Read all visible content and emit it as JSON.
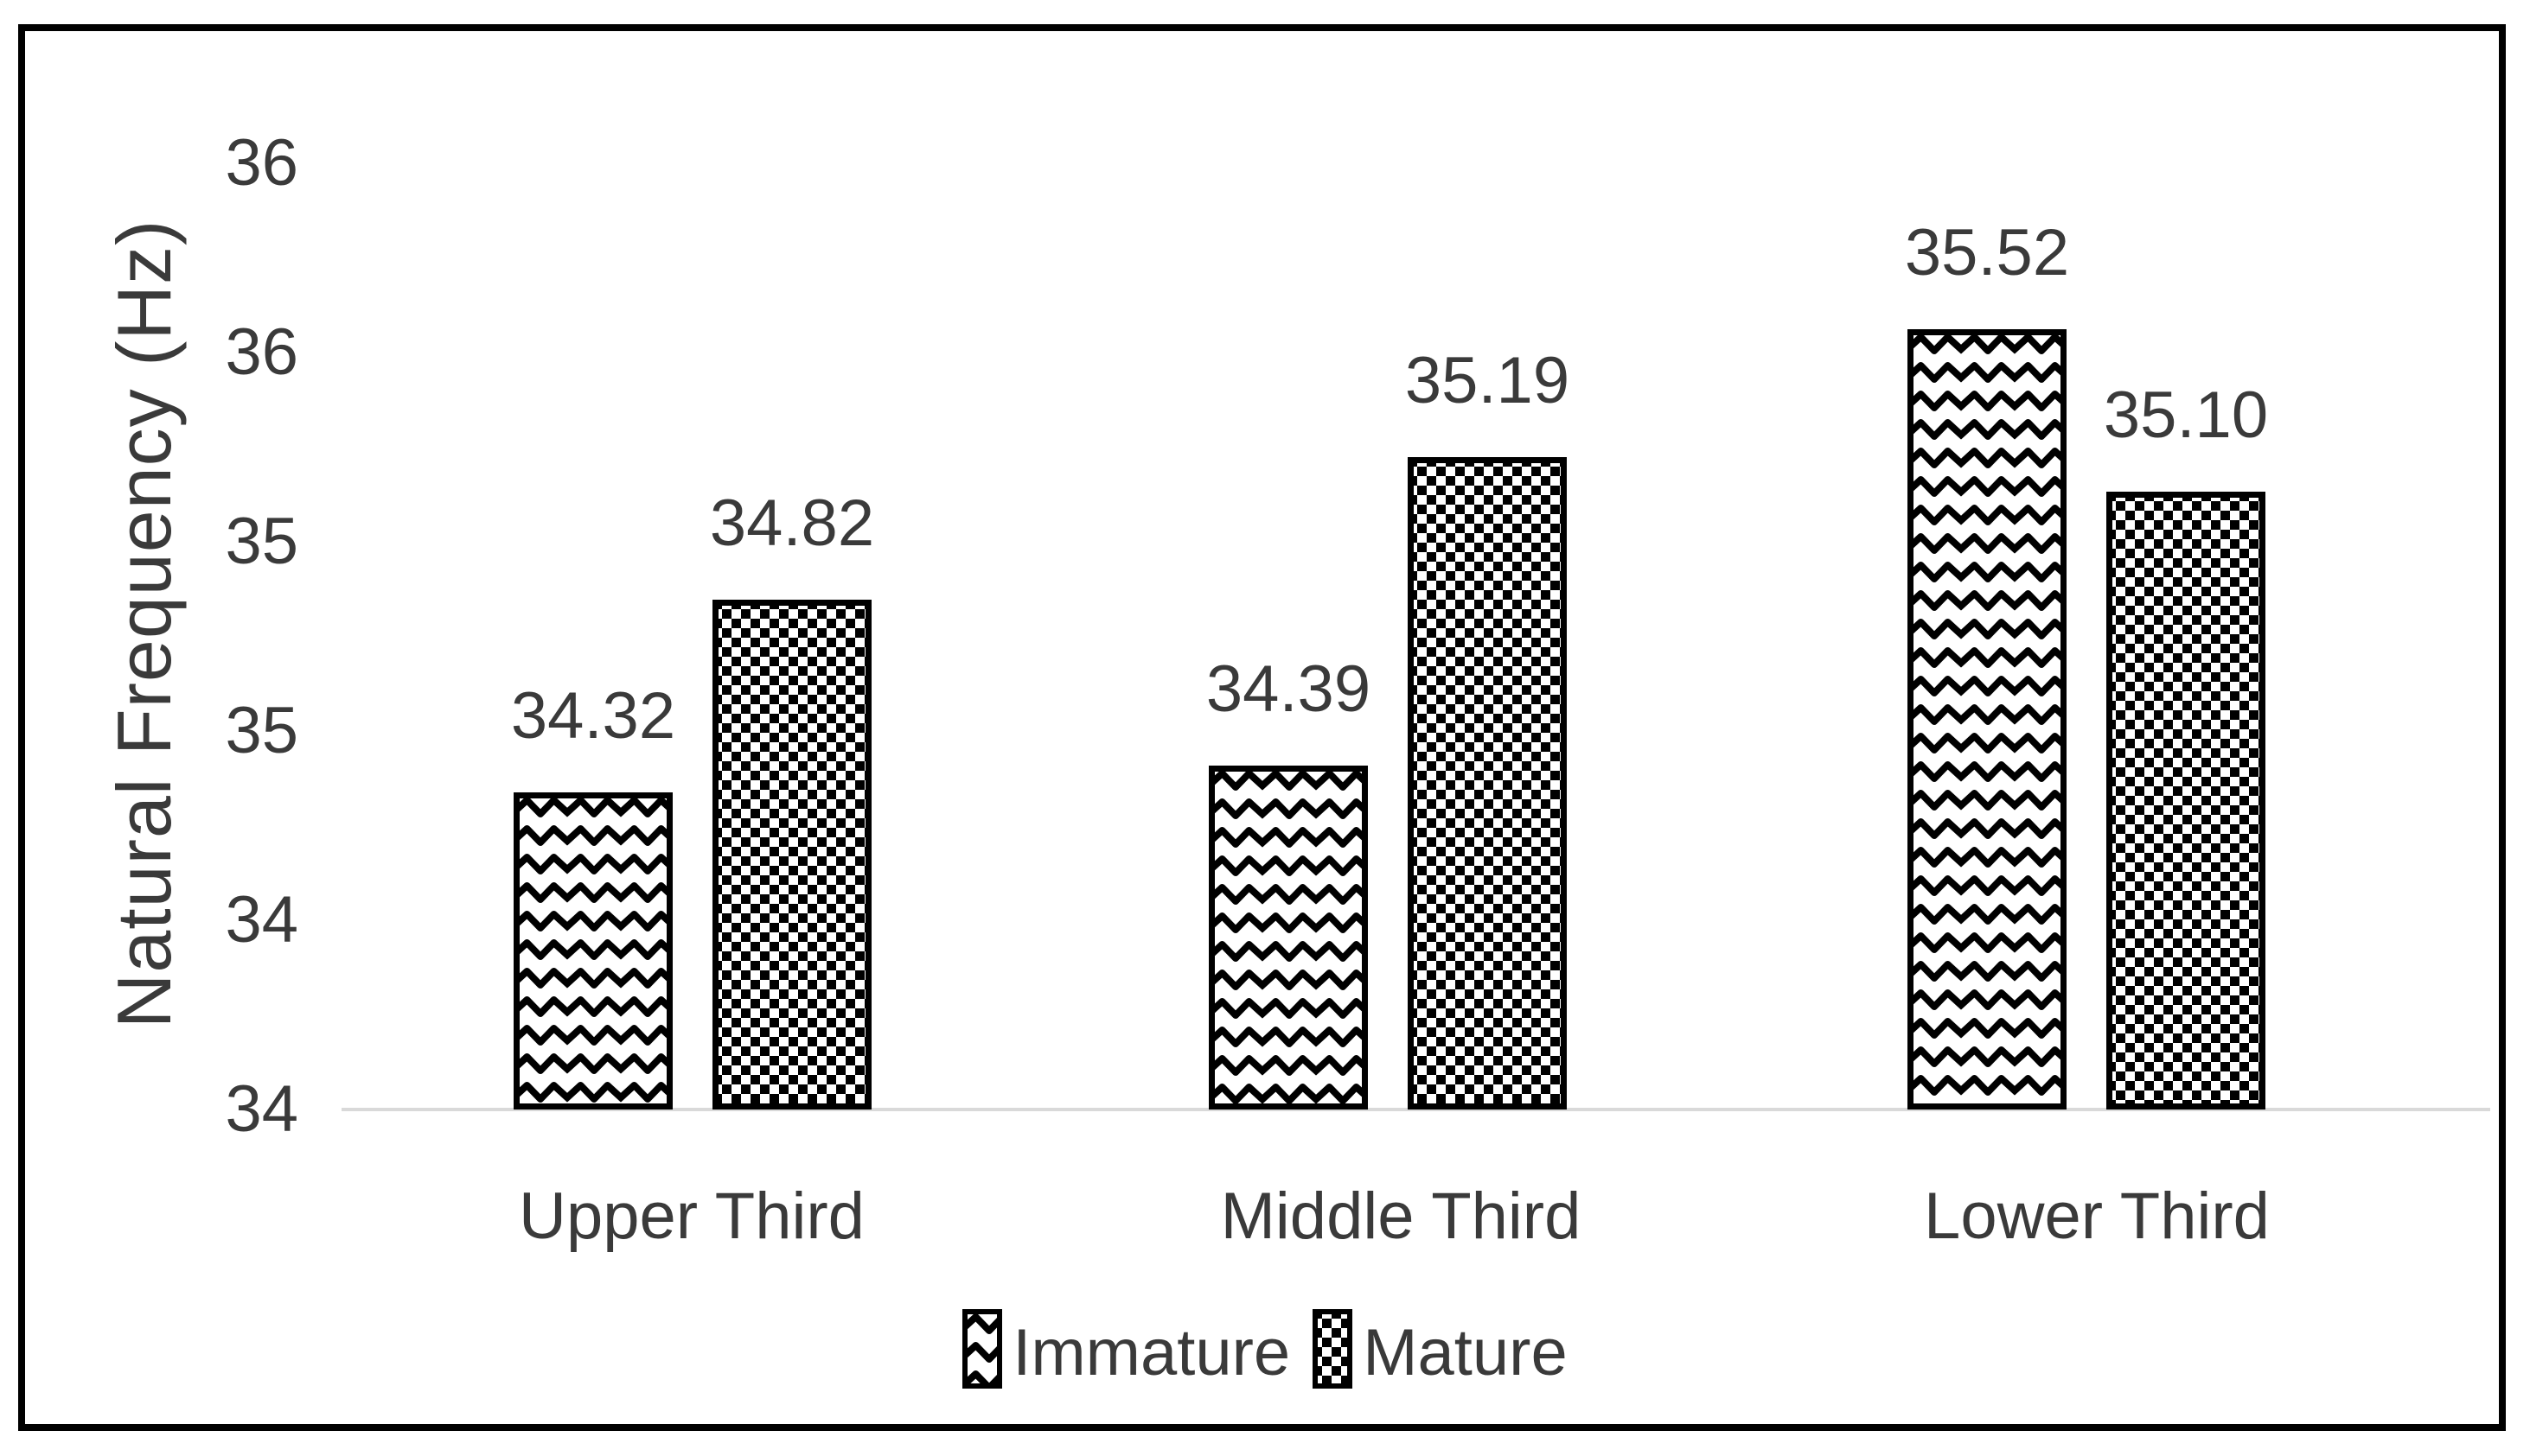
{
  "page": {
    "background": "#ffffff",
    "frame_border_color": "#000000"
  },
  "chart_data": {
    "type": "bar",
    "title": "",
    "xlabel": "",
    "ylabel": "Natural Frequency (Hz)",
    "categories": [
      "Upper Third",
      "Middle Third",
      "Lower Third"
    ],
    "series": [
      {
        "name": "Immature",
        "pattern": "zigzag",
        "values": [
          34.32,
          34.39,
          35.52
        ]
      },
      {
        "name": "Mature",
        "pattern": "checker",
        "values": [
          34.82,
          35.19,
          35.1
        ]
      }
    ],
    "data_labels": [
      [
        "34.32",
        "34.39",
        "35.52"
      ],
      [
        "34.82",
        "35.19",
        "35.10"
      ]
    ],
    "y_axis": {
      "min": 33.5,
      "max": 36.25,
      "major_unit": 0.5,
      "tick_labels_bottom_to_top": [
        "34",
        "34",
        "35",
        "35",
        "36",
        "36"
      ],
      "label_format": "rounded-integer"
    },
    "legend": {
      "position": "bottom",
      "entries": [
        "Immature",
        "Mature"
      ]
    },
    "grid": false,
    "colors": {
      "pattern_ink": "#000000",
      "bar_background": "#ffffff",
      "axis_line": "#d9d9d9",
      "text": "#3a3a3a"
    }
  }
}
